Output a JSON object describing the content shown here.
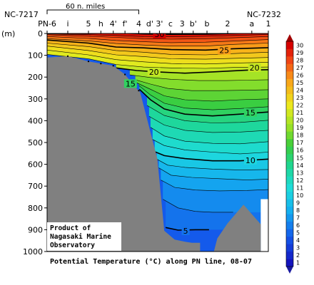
{
  "chart_data": {
    "type": "heatmap",
    "title": "Potential Temperature (°C) along PN line, 08-07",
    "ylabel": "(m)",
    "ylim": [
      0,
      1000
    ],
    "yticks": [
      0,
      100,
      200,
      300,
      400,
      500,
      600,
      700,
      800,
      900,
      1000
    ],
    "stations": [
      "PN-6",
      "i",
      "5",
      "h",
      "4'",
      "f'",
      "4",
      "d'",
      "3'",
      "c",
      "3",
      "b'",
      "b",
      "2",
      "a",
      "1"
    ],
    "station_x": [
      0,
      30,
      60,
      78,
      96,
      113,
      133,
      149,
      163,
      179,
      196,
      212,
      232,
      262,
      297,
      321
    ],
    "left_end": "NC-7217",
    "right_end": "NC-7232",
    "scale_bar": "60 n. miles",
    "colorbar": {
      "min": 1,
      "max": 30,
      "step": 1,
      "labels": [
        1,
        2,
        3,
        4,
        5,
        6,
        7,
        8,
        9,
        10,
        11,
        12,
        13,
        14,
        15,
        16,
        17,
        18,
        19,
        20,
        21,
        22,
        23,
        24,
        25,
        26,
        27,
        28,
        29,
        30
      ]
    },
    "contour_labels": [
      {
        "value": "30",
        "x": 163,
        "depth": 3
      },
      {
        "value": "25",
        "x": 257,
        "depth": 76
      },
      {
        "value": "20",
        "x": 155,
        "depth": 176
      },
      {
        "value": "20",
        "x": 301,
        "depth": 157
      },
      {
        "value": "15",
        "x": 121,
        "depth": 230
      },
      {
        "value": "15",
        "x": 295,
        "depth": 362
      },
      {
        "value": "10",
        "x": 295,
        "depth": 581
      },
      {
        "value": "5",
        "x": 201,
        "depth": 905
      }
    ],
    "topography": [
      [
        0,
        110
      ],
      [
        30,
        104
      ],
      [
        60,
        128
      ],
      [
        96,
        148
      ],
      [
        113,
        188
      ],
      [
        125,
        235
      ],
      [
        135,
        270
      ],
      [
        160,
        575
      ],
      [
        170,
        905
      ],
      [
        185,
        945
      ],
      [
        200,
        955
      ],
      [
        210,
        960
      ],
      [
        222,
        960
      ],
      [
        222,
        1000
      ],
      [
        0,
        1000
      ]
    ],
    "seamount": [
      [
        242,
        1000
      ],
      [
        247,
        940
      ],
      [
        262,
        870
      ],
      [
        285,
        785
      ],
      [
        310,
        875
      ],
      [
        310,
        1000
      ]
    ],
    "data_edge": [
      [
        310,
        760
      ],
      [
        321,
        760
      ],
      [
        321,
        0
      ]
    ],
    "isotherms": [
      {
        "v": 30,
        "pts": [
          [
            0,
            0
          ],
          [
            60,
            0
          ],
          [
            100,
            -3
          ],
          [
            140,
            2
          ],
          [
            180,
            4
          ],
          [
            230,
            3
          ],
          [
            270,
            0
          ],
          [
            321,
            -4
          ]
        ]
      },
      {
        "v": 29,
        "pts": [
          [
            0,
            2
          ],
          [
            60,
            6
          ],
          [
            100,
            9
          ],
          [
            140,
            14
          ],
          [
            180,
            15
          ],
          [
            230,
            13
          ],
          [
            270,
            9
          ],
          [
            321,
            5
          ]
        ]
      },
      {
        "v": 28,
        "pts": [
          [
            0,
            6
          ],
          [
            60,
            13
          ],
          [
            100,
            18
          ],
          [
            140,
            24
          ],
          [
            180,
            26
          ],
          [
            230,
            24
          ],
          [
            270,
            20
          ],
          [
            321,
            14
          ]
        ]
      },
      {
        "v": 27,
        "pts": [
          [
            0,
            14
          ],
          [
            60,
            23
          ],
          [
            100,
            32
          ],
          [
            140,
            38
          ],
          [
            180,
            42
          ],
          [
            230,
            40
          ],
          [
            270,
            35
          ],
          [
            321,
            28
          ]
        ]
      },
      {
        "v": 26,
        "pts": [
          [
            0,
            24
          ],
          [
            60,
            34
          ],
          [
            100,
            46
          ],
          [
            140,
            53
          ],
          [
            180,
            58
          ],
          [
            230,
            58
          ],
          [
            270,
            50
          ],
          [
            321,
            44
          ]
        ]
      },
      {
        "v": 25,
        "pts": [
          [
            0,
            30
          ],
          [
            60,
            44
          ],
          [
            100,
            62
          ],
          [
            140,
            66
          ],
          [
            180,
            74
          ],
          [
            230,
            76
          ],
          [
            270,
            70
          ],
          [
            321,
            65
          ]
        ]
      },
      {
        "v": 24,
        "pts": [
          [
            0,
            44
          ],
          [
            60,
            60
          ],
          [
            100,
            78
          ],
          [
            140,
            86
          ],
          [
            180,
            96
          ],
          [
            230,
            98
          ],
          [
            270,
            92
          ],
          [
            321,
            86
          ]
        ]
      },
      {
        "v": 23,
        "pts": [
          [
            0,
            58
          ],
          [
            60,
            78
          ],
          [
            100,
            98
          ],
          [
            140,
            106
          ],
          [
            180,
            116
          ],
          [
            230,
            118
          ],
          [
            270,
            114
          ],
          [
            321,
            110
          ]
        ]
      },
      {
        "v": 22,
        "pts": [
          [
            0,
            76
          ],
          [
            60,
            98
          ],
          [
            100,
            120
          ],
          [
            140,
            130
          ],
          [
            180,
            138
          ],
          [
            230,
            140
          ],
          [
            270,
            136
          ],
          [
            321,
            132
          ]
        ]
      },
      {
        "v": 21,
        "pts": [
          [
            0,
            96
          ],
          [
            60,
            116
          ],
          [
            100,
            142
          ],
          [
            140,
            154
          ],
          [
            180,
            158
          ],
          [
            230,
            160
          ],
          [
            270,
            156
          ],
          [
            321,
            154
          ]
        ]
      },
      {
        "v": 20,
        "pts": [
          [
            100,
            158
          ],
          [
            130,
            170
          ],
          [
            160,
            176
          ],
          [
            200,
            182
          ],
          [
            240,
            176
          ],
          [
            290,
            168
          ],
          [
            321,
            166
          ]
        ]
      },
      {
        "v": 19,
        "pts": [
          [
            120,
            190
          ],
          [
            150,
            202
          ],
          [
            180,
            210
          ],
          [
            220,
            216
          ],
          [
            260,
            216
          ],
          [
            290,
            214
          ],
          [
            321,
            212
          ]
        ]
      },
      {
        "v": 18,
        "pts": [
          [
            128,
            212
          ],
          [
            150,
            232
          ],
          [
            175,
            252
          ],
          [
            210,
            262
          ],
          [
            250,
            262
          ],
          [
            290,
            260
          ],
          [
            321,
            258
          ]
        ]
      },
      {
        "v": 17,
        "pts": [
          [
            130,
            226
          ],
          [
            150,
            256
          ],
          [
            170,
            286
          ],
          [
            200,
            304
          ],
          [
            240,
            310
          ],
          [
            280,
            304
          ],
          [
            321,
            300
          ]
        ]
      },
      {
        "v": 16,
        "pts": [
          [
            133,
            238
          ],
          [
            150,
            282
          ],
          [
            170,
            320
          ],
          [
            200,
            342
          ],
          [
            240,
            350
          ],
          [
            280,
            344
          ],
          [
            321,
            336
          ]
        ]
      },
      {
        "v": 15,
        "pts": [
          [
            134,
            256
          ],
          [
            150,
            304
          ],
          [
            170,
            346
          ],
          [
            200,
            370
          ],
          [
            240,
            378
          ],
          [
            280,
            370
          ],
          [
            321,
            360
          ]
        ]
      },
      {
        "v": 14,
        "pts": [
          [
            145,
            330
          ],
          [
            170,
            376
          ],
          [
            200,
            400
          ],
          [
            240,
            410
          ],
          [
            280,
            408
          ],
          [
            321,
            398
          ]
        ]
      },
      {
        "v": 13,
        "pts": [
          [
            148,
            380
          ],
          [
            170,
            420
          ],
          [
            200,
            444
          ],
          [
            240,
            454
          ],
          [
            280,
            452
          ],
          [
            321,
            444
          ]
        ]
      },
      {
        "v": 12,
        "pts": [
          [
            150,
            430
          ],
          [
            170,
            470
          ],
          [
            200,
            494
          ],
          [
            240,
            504
          ],
          [
            280,
            506
          ],
          [
            321,
            496
          ]
        ]
      },
      {
        "v": 11,
        "pts": [
          [
            153,
            486
          ],
          [
            170,
            514
          ],
          [
            200,
            534
          ],
          [
            240,
            544
          ],
          [
            280,
            552
          ],
          [
            321,
            544
          ]
        ]
      },
      {
        "v": 10,
        "pts": [
          [
            156,
            542
          ],
          [
            170,
            560
          ],
          [
            200,
            574
          ],
          [
            240,
            584
          ],
          [
            280,
            584
          ],
          [
            321,
            576
          ]
        ]
      },
      {
        "v": 9,
        "pts": [
          [
            159,
            576
          ],
          [
            175,
            604
          ],
          [
            200,
            614
          ],
          [
            240,
            622
          ],
          [
            280,
            626
          ],
          [
            321,
            624
          ]
        ]
      },
      {
        "v": 8,
        "pts": [
          [
            162,
            616
          ],
          [
            180,
            650
          ],
          [
            210,
            660
          ],
          [
            250,
            666
          ],
          [
            290,
            672
          ],
          [
            321,
            668
          ]
        ]
      },
      {
        "v": 7,
        "pts": [
          [
            165,
            672
          ],
          [
            185,
            706
          ],
          [
            215,
            718
          ],
          [
            250,
            722
          ],
          [
            290,
            720
          ],
          [
            321,
            716
          ]
        ]
      },
      {
        "v": 6,
        "pts": [
          [
            168,
            760
          ],
          [
            190,
            800
          ],
          [
            215,
            816
          ],
          [
            240,
            820
          ],
          [
            270,
            820
          ]
        ]
      },
      {
        "v": 5,
        "pts": [
          [
            172,
            890
          ],
          [
            190,
            902
          ],
          [
            215,
            900
          ],
          [
            235,
            900
          ]
        ]
      }
    ]
  },
  "footer": {
    "credit_line1": "Product of",
    "credit_line2": "Nagasaki Marine",
    "credit_line3": "Observatory"
  }
}
